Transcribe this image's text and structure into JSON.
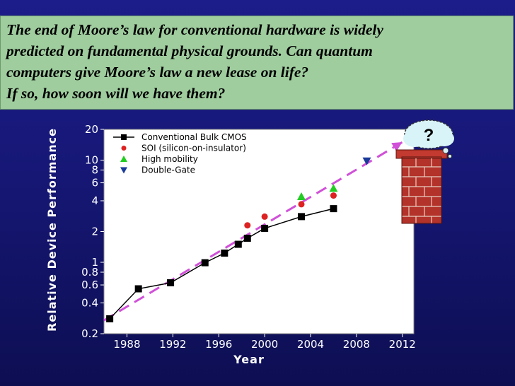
{
  "header": {
    "lines": [
      "The end of Moore’s law for conventional hardware is widely",
      "predicted on fundamental physical grounds.  Can quantum",
      "computers give Moore’s law a new lease on life?",
      "If so, how soon will we have them?"
    ]
  },
  "cloud": {
    "text": "?"
  },
  "colors": {
    "cmos": "#000000",
    "soi": "#dd2222",
    "mobility": "#22cc22",
    "doublegate": "#1a3a9a",
    "trend": "#d050d8",
    "plot_bg": "#ffffff"
  },
  "chart_data": {
    "type": "line",
    "xlabel": "Year",
    "ylabel": "Relative Device Performance",
    "yscale": "log",
    "xlim": [
      1986,
      2013
    ],
    "ylim": [
      0.2,
      20
    ],
    "xticks": [
      1988,
      1992,
      1996,
      2000,
      2004,
      2008,
      2012
    ],
    "yticks": [
      {
        "value": 20,
        "label": "20"
      },
      {
        "value": 10,
        "label": "10"
      },
      {
        "value": 8,
        "label": "8"
      },
      {
        "value": 6,
        "label": "6"
      },
      {
        "value": 4,
        "label": "4"
      },
      {
        "value": 2,
        "label": "2"
      },
      {
        "value": 1,
        "label": "1"
      },
      {
        "value": 0.8,
        "label": "0.8"
      },
      {
        "value": 0.6,
        "label": "0.6"
      },
      {
        "value": 0.4,
        "label": "0.4"
      },
      {
        "value": 0.2,
        "label": "0.2"
      }
    ],
    "series": [
      {
        "name": "Conventional Bulk CMOS",
        "marker": "square",
        "line": true,
        "points": [
          [
            1986.5,
            0.28
          ],
          [
            1989,
            0.55
          ],
          [
            1991.8,
            0.63
          ],
          [
            1994.8,
            0.99
          ],
          [
            1996.5,
            1.23
          ],
          [
            1997.7,
            1.5
          ],
          [
            1998.5,
            1.72
          ],
          [
            2000,
            2.15
          ],
          [
            2003.2,
            2.8
          ],
          [
            2006,
            3.35
          ]
        ]
      },
      {
        "name": "SOI (silicon-on-insulator)",
        "marker": "circle",
        "line": false,
        "points": [
          [
            1998.5,
            2.3
          ],
          [
            2000,
            2.8
          ],
          [
            2003.2,
            3.7
          ],
          [
            2006,
            4.5
          ]
        ]
      },
      {
        "name": "High mobility",
        "marker": "triangle-up",
        "line": false,
        "points": [
          [
            2003.2,
            4.4
          ],
          [
            2006,
            5.3
          ]
        ]
      },
      {
        "name": "Double-Gate",
        "marker": "triangle-down",
        "line": false,
        "points": [
          [
            2008.9,
            9.8
          ]
        ]
      }
    ],
    "trendline": {
      "from": [
        1986,
        0.27
      ],
      "to": [
        2012,
        15
      ]
    }
  }
}
